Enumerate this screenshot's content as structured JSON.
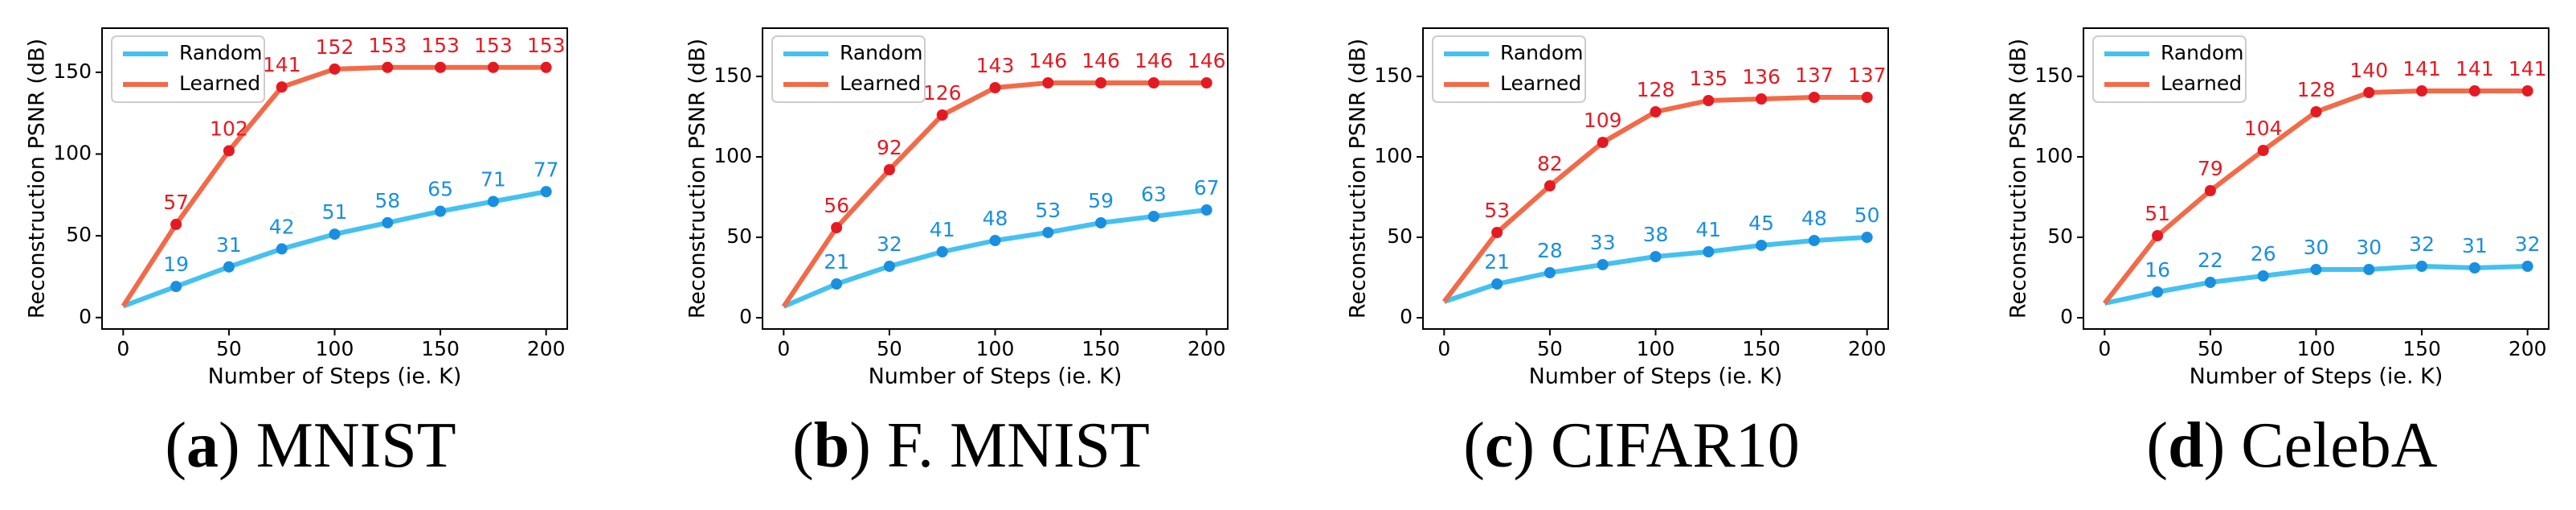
{
  "chart_data": [
    {
      "type": "line",
      "caption_label": "a",
      "caption": "MNIST",
      "xlabel": "Number of Steps (ie. K)",
      "ylabel": "Reconstruction PSNR (dB)",
      "x": [
        0,
        25,
        50,
        75,
        100,
        125,
        150,
        175,
        200
      ],
      "xlim": [
        -10,
        210
      ],
      "xticks": [
        0,
        50,
        100,
        150,
        200
      ],
      "ylim": [
        -7,
        177
      ],
      "yticks": [
        0,
        50,
        100,
        150
      ],
      "legend": "upper left",
      "series": [
        {
          "name": "Random",
          "color": "#45c1f0",
          "label_color": "#1a8fe0",
          "values": [
            7,
            19,
            31,
            42,
            51,
            58,
            65,
            71,
            77
          ],
          "value_labels": [
            null,
            19,
            31,
            42,
            51,
            58,
            65,
            71,
            77
          ]
        },
        {
          "name": "Learned",
          "color": "#f26a48",
          "label_color": "#e41a23",
          "values": [
            7,
            57,
            102,
            141,
            152,
            153,
            153,
            153,
            153
          ],
          "value_labels": [
            null,
            57,
            102,
            141,
            152,
            153,
            153,
            153,
            153
          ]
        }
      ]
    },
    {
      "type": "line",
      "caption_label": "b",
      "caption": "F. MNIST",
      "xlabel": "Number of Steps (ie. K)",
      "ylabel": "Reconstruction PSNR (dB)",
      "x": [
        0,
        25,
        50,
        75,
        100,
        125,
        150,
        175,
        200
      ],
      "xlim": [
        -10,
        210
      ],
      "xticks": [
        0,
        50,
        100,
        150,
        200
      ],
      "ylim": [
        -7,
        180
      ],
      "yticks": [
        0,
        50,
        100,
        150
      ],
      "legend": "upper left",
      "series": [
        {
          "name": "Random",
          "color": "#45c1f0",
          "label_color": "#1a8fe0",
          "values": [
            7,
            21,
            32,
            41,
            48,
            53,
            59,
            63,
            67
          ],
          "value_labels": [
            null,
            21,
            32,
            41,
            48,
            53,
            59,
            63,
            67
          ]
        },
        {
          "name": "Learned",
          "color": "#f26a48",
          "label_color": "#e41a23",
          "values": [
            7,
            56,
            92,
            126,
            143,
            146,
            146,
            146,
            146
          ],
          "value_labels": [
            null,
            56,
            92,
            126,
            143,
            146,
            146,
            146,
            146
          ]
        }
      ]
    },
    {
      "type": "line",
      "caption_label": "c",
      "caption": "CIFAR10",
      "xlabel": "Number of Steps (ie. K)",
      "ylabel": "Reconstruction PSNR (dB)",
      "x": [
        0,
        25,
        50,
        75,
        100,
        125,
        150,
        175,
        200
      ],
      "xlim": [
        -10,
        210
      ],
      "xticks": [
        0,
        50,
        100,
        150,
        200
      ],
      "ylim": [
        -7,
        180
      ],
      "yticks": [
        0,
        50,
        100,
        150
      ],
      "legend": "upper left",
      "series": [
        {
          "name": "Random",
          "color": "#45c1f0",
          "label_color": "#1a8fe0",
          "values": [
            10,
            21,
            28,
            33,
            38,
            41,
            45,
            48,
            50
          ],
          "value_labels": [
            null,
            21,
            28,
            33,
            38,
            41,
            45,
            48,
            50
          ]
        },
        {
          "name": "Learned",
          "color": "#f26a48",
          "label_color": "#e41a23",
          "values": [
            10,
            53,
            82,
            109,
            128,
            135,
            136,
            137,
            137
          ],
          "value_labels": [
            null,
            53,
            82,
            109,
            128,
            135,
            136,
            137,
            137
          ]
        }
      ]
    },
    {
      "type": "line",
      "caption_label": "d",
      "caption": "CelebA",
      "xlabel": "Number of Steps (ie. K)",
      "ylabel": "Reconstruction PSNR (dB)",
      "x": [
        0,
        25,
        50,
        75,
        100,
        125,
        150,
        175,
        200
      ],
      "xlim": [
        -10,
        210
      ],
      "xticks": [
        0,
        50,
        100,
        150,
        200
      ],
      "ylim": [
        -7,
        180
      ],
      "yticks": [
        0,
        50,
        100,
        150
      ],
      "legend": "upper left",
      "series": [
        {
          "name": "Random",
          "color": "#45c1f0",
          "label_color": "#1a8fe0",
          "values": [
            9,
            16,
            22,
            26,
            30,
            30,
            32,
            31,
            32
          ],
          "value_labels": [
            null,
            16,
            22,
            26,
            30,
            30,
            32,
            31,
            32
          ]
        },
        {
          "name": "Learned",
          "color": "#f26a48",
          "label_color": "#e41a23",
          "values": [
            9,
            51,
            79,
            104,
            128,
            140,
            141,
            141,
            141
          ],
          "value_labels": [
            null,
            51,
            79,
            104,
            128,
            140,
            141,
            141,
            141
          ]
        }
      ]
    }
  ]
}
